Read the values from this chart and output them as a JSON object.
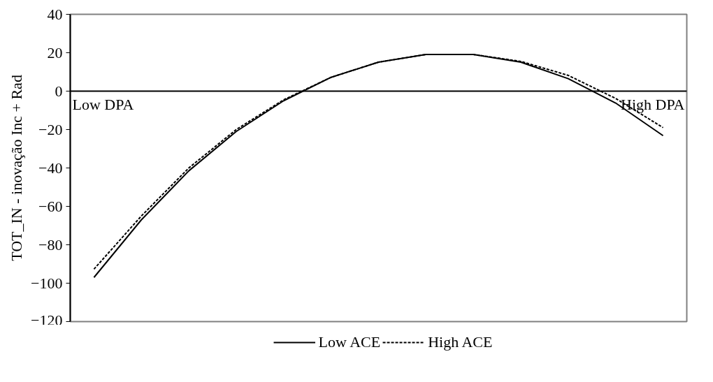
{
  "chart_data": {
    "type": "line",
    "ylabel": "TOT_IN - inovação Inc + Rad",
    "categories": [
      null,
      null,
      null,
      null,
      null,
      null,
      null,
      null,
      null,
      null,
      null,
      null,
      null
    ],
    "series": [
      {
        "name": "Low ACE",
        "color": "#000000",
        "line_style": "solid",
        "values": [
          -97,
          -67,
          -41.5,
          -21,
          -5,
          7.2,
          15.1,
          19.1,
          19.1,
          15.1,
          6.5,
          -6.2,
          -23.2
        ]
      },
      {
        "name": "High ACE",
        "color": "#000000",
        "line_style": "dashed",
        "values": [
          -92.7,
          -65,
          -40,
          -20,
          -4.5,
          7.2,
          15.1,
          19.1,
          19.1,
          15.5,
          8.2,
          -3.8,
          -19
        ]
      }
    ],
    "ylim": [
      -120,
      40
    ],
    "yticks": [
      -120,
      -100,
      -80,
      -60,
      -40,
      -20,
      0,
      20,
      40
    ],
    "ref_lines": [
      {
        "axis": "y",
        "value": 0,
        "color": "#000000"
      }
    ],
    "annotations": [
      "Low DPA",
      "High DPA"
    ],
    "grid": false,
    "legend": "bottom",
    "marker": "none",
    "tick_labels": "y"
  }
}
